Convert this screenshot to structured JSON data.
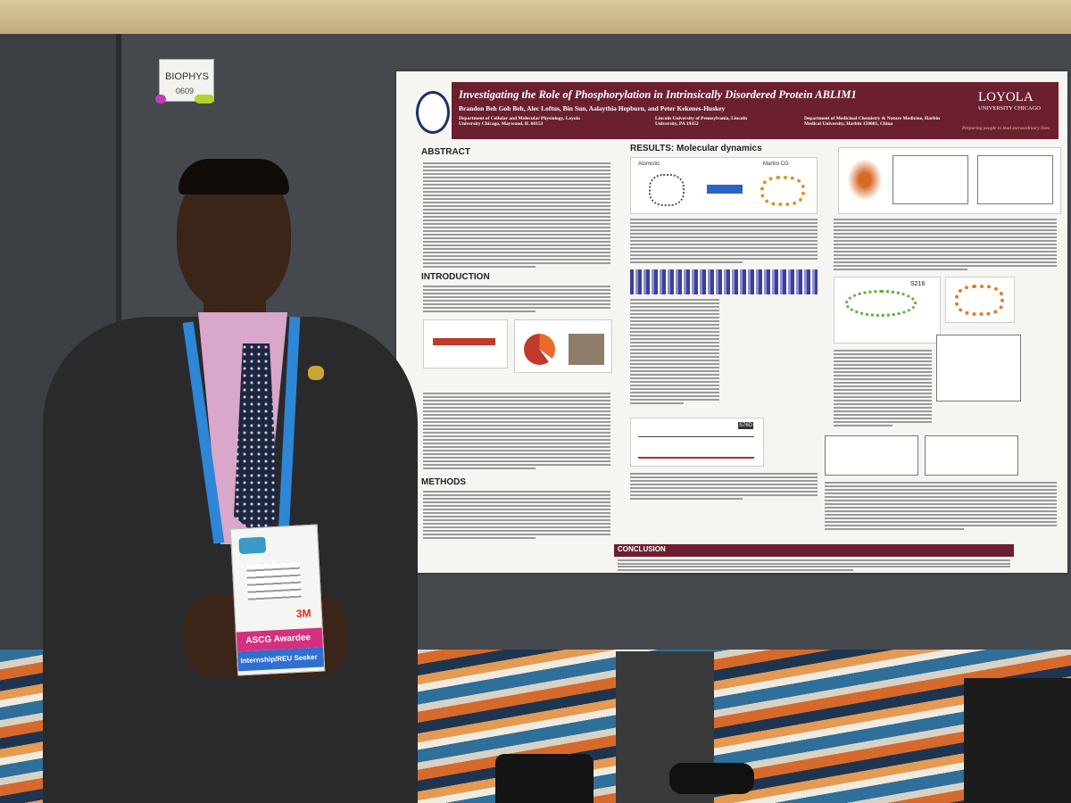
{
  "sign": {
    "label": "BIOPHYS",
    "number": "0609"
  },
  "poster": {
    "title": "Investigating the Role of Phosphorylation in Intrinsically Disordered Protein ABLIM1",
    "authors": "Brandon Beh Goh Beh, Alec Loftus, Bin Sun, Aalaythia Hepburn, and Peter Kekenes-Huskey",
    "affiliations": [
      "Department of Cellular and Molecular Physiology, Loyola University Chicago, Maywood, IL 60153",
      "Lincoln University of Pennsylvania, Lincoln University, PA 19352",
      "Department of Medicinal Chemistry & Nature Medicine, Harbin Medical University, Harbin 150081, China"
    ],
    "logo": {
      "name": "LOYOLA",
      "subname": "UNIVERSITY CHICAGO",
      "motto": "Preparing people to lead extraordinary lives"
    },
    "sections": {
      "abstract": "ABSTRACT",
      "introduction": "INTRODUCTION",
      "methods": "METHODS",
      "results": "RESULTS: Molecular dynamics",
      "conclusion": "CONCLUSION"
    },
    "figure_labels": {
      "atomistic": "Atomistic",
      "martini": "Martini CG",
      "site1": "S216",
      "site2": "S76D"
    }
  },
  "badge": {
    "sponsor": "3M",
    "award": "ASCG Awardee",
    "status": "Internship/REU Seeker"
  }
}
